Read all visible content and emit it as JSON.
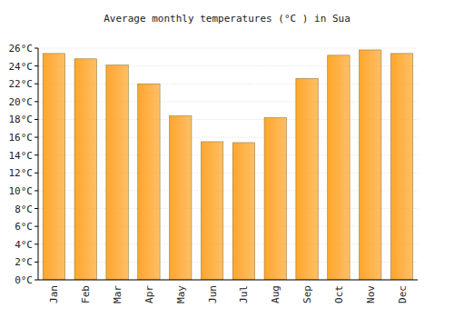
{
  "chart_data": {
    "type": "bar",
    "title": "Average monthly temperatures (°C ) in Sua",
    "categories": [
      "Jan",
      "Feb",
      "Mar",
      "Apr",
      "May",
      "Jun",
      "Jul",
      "Aug",
      "Sep",
      "Oct",
      "Nov",
      "Dec"
    ],
    "values": [
      25.4,
      24.8,
      24.1,
      22.0,
      18.4,
      15.5,
      15.4,
      18.2,
      22.6,
      25.2,
      25.8,
      25.4
    ],
    "color": "#ffa62b",
    "ylim": [
      0,
      26
    ],
    "yticks": [
      {
        "value": 0,
        "label": "0°C"
      },
      {
        "value": 2,
        "label": "2°C"
      },
      {
        "value": 4,
        "label": "4°C"
      },
      {
        "value": 6,
        "label": "6°C"
      },
      {
        "value": 8,
        "label": "8°C"
      },
      {
        "value": 10,
        "label": "10°C"
      },
      {
        "value": 12,
        "label": "12°C"
      },
      {
        "value": 14,
        "label": "14°C"
      },
      {
        "value": 16,
        "label": "16°C"
      },
      {
        "value": 18,
        "label": "18°C"
      },
      {
        "value": 20,
        "label": "20°C"
      },
      {
        "value": 22,
        "label": "22°C"
      },
      {
        "value": 24,
        "label": "24°C"
      },
      {
        "value": 26,
        "label": "26°C"
      }
    ],
    "grid": true
  }
}
